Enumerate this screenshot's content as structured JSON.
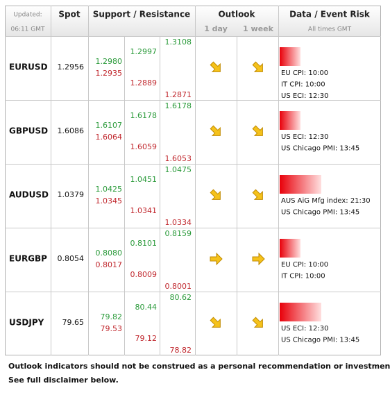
{
  "header": {
    "updated_label": "Updated:",
    "updated_time": "06:11 GMT",
    "spot": "Spot",
    "support_resistance": "Support / Resistance",
    "outlook": "Outlook",
    "outlook_1day": "1 day",
    "outlook_1week": "1 week",
    "data_event_risk": "Data / Event Risk",
    "all_times": "All times GMT"
  },
  "rows": [
    {
      "pair": "EURUSD",
      "spot": "1.2956",
      "levels": [
        [
          "1.2980",
          "1.2935"
        ],
        [
          "1.2997",
          "1.2889"
        ],
        [
          "1.3108",
          "1.2871"
        ]
      ],
      "events": [
        "EU CPI: 10:00",
        "IT CPI: 10:00",
        "US ECI: 12:30"
      ]
    },
    {
      "pair": "GBPUSD",
      "spot": "1.6086",
      "levels": [
        [
          "1.6107",
          "1.6064"
        ],
        [
          "1.6178",
          "1.6059"
        ],
        [
          "1.6178",
          "1.6053"
        ]
      ],
      "events": [
        "US ECI: 12:30",
        "US Chicago PMI: 13:45"
      ]
    },
    {
      "pair": "AUDUSD",
      "spot": "1.0379",
      "levels": [
        [
          "1.0425",
          "1.0345"
        ],
        [
          "1.0451",
          "1.0341"
        ],
        [
          "1.0475",
          "1.0334"
        ]
      ],
      "events": [
        "AUS AiG Mfg index: 21:30",
        "US Chicago PMI: 13:45"
      ]
    },
    {
      "pair": "EURGBP",
      "spot": "0.8054",
      "levels": [
        [
          "0.8080",
          "0.8017"
        ],
        [
          "0.8101",
          "0.8009"
        ],
        [
          "0.8159",
          "0.8001"
        ]
      ],
      "events": [
        "EU CPI: 10:00",
        "IT CPI: 10:00"
      ]
    },
    {
      "pair": "USDJPY",
      "spot": "79.65",
      "levels": [
        [
          "79.82",
          "79.53"
        ],
        [
          "80.44",
          "79.12"
        ],
        [
          "80.62",
          "78.82"
        ]
      ],
      "events": [
        "US ECI: 12:30",
        "US Chicago PMI: 13:45"
      ]
    }
  ],
  "footer": [
    "Outlook indicators should not be construed as a personal recommendation or investment advice.",
    "See full disclaimer below."
  ]
}
